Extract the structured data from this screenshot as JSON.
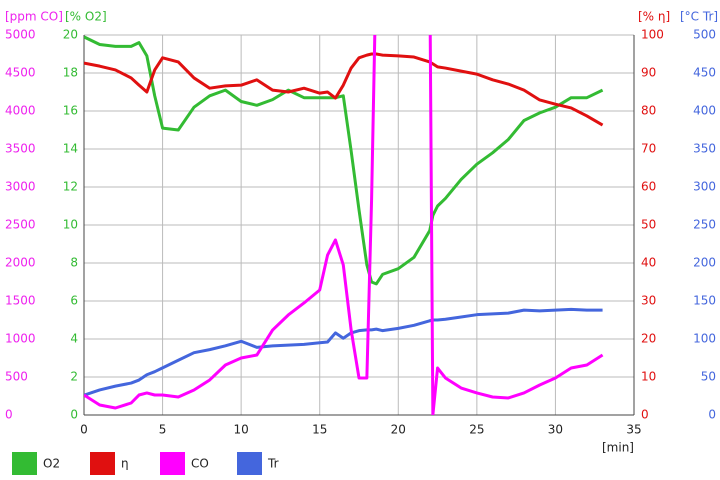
{
  "chart_data": {
    "type": "line",
    "x_label": "[min]",
    "xlim": [
      0,
      35
    ],
    "xticks": [
      0,
      5,
      10,
      15,
      20,
      25,
      30,
      35
    ],
    "grid": true,
    "legend": "bottom",
    "y_axes": [
      {
        "label": "[ppm CO]",
        "color": "#ee22ee",
        "side": "left",
        "lim": [
          0,
          5000
        ],
        "ticks": [
          0,
          500,
          1000,
          1500,
          2000,
          2500,
          3000,
          3500,
          4000,
          4500,
          5000
        ]
      },
      {
        "label": "[% O2]",
        "color": "#33bb33",
        "side": "left",
        "lim": [
          0,
          20
        ],
        "ticks": [
          0,
          2,
          4,
          6,
          8,
          10,
          12,
          14,
          16,
          18,
          20
        ]
      },
      {
        "label": "[% η]",
        "color": "#e01010",
        "side": "right",
        "lim": [
          0,
          100
        ],
        "ticks": [
          0,
          10,
          20,
          30,
          40,
          50,
          60,
          70,
          80,
          90,
          100
        ]
      },
      {
        "label": "[°C Tr]",
        "color": "#4466dd",
        "side": "right",
        "lim": [
          0,
          500
        ],
        "ticks": [
          0,
          50,
          100,
          150,
          200,
          250,
          300,
          350,
          400,
          450,
          500
        ]
      }
    ],
    "x": [
      0,
      1,
      2,
      3,
      3.5,
      4,
      4.5,
      5,
      6,
      7,
      8,
      9,
      10,
      11,
      12,
      13,
      14,
      15,
      15.5,
      16,
      16.5,
      17,
      17.5,
      18,
      18.3,
      18.6,
      19,
      20,
      21,
      22,
      22.2,
      22.5,
      23,
      24,
      25,
      26,
      27,
      28,
      29,
      30,
      31,
      32,
      33
    ],
    "series": [
      {
        "name": "O2",
        "color": "#33bb33",
        "axis": 1,
        "values": [
          19.9,
          19.5,
          19.4,
          19.4,
          19.6,
          18.9,
          16.8,
          15.1,
          15,
          16.2,
          16.8,
          17.1,
          16.5,
          16.3,
          16.6,
          17.1,
          16.7,
          16.7,
          16.7,
          16.7,
          16.8,
          13.9,
          10.8,
          7.9,
          7.0,
          6.9,
          7.4,
          7.7,
          8.3,
          9.7,
          10.5,
          11,
          11.4,
          12.4,
          13.2,
          13.8,
          14.5,
          15.5,
          15.9,
          16.2,
          16.7,
          16.7,
          17.1
        ]
      },
      {
        "name": "η",
        "color": "#e01010",
        "axis": 2,
        "values": [
          92.6,
          91.8,
          90.8,
          88.7,
          86.8,
          85,
          90.8,
          94,
          92.9,
          88.7,
          86,
          86.6,
          86.8,
          88.2,
          85.5,
          85,
          86,
          84.7,
          85,
          83.4,
          86.8,
          91.3,
          94,
          94.7,
          95,
          95,
          94.7,
          94.5,
          94.2,
          92.9,
          92.4,
          91.6,
          91.3,
          90.5,
          89.7,
          88.2,
          87.1,
          85.5,
          82.9,
          81.8,
          80.8,
          78.7,
          76.3
        ]
      },
      {
        "name": "CO",
        "color": "#ff00ff",
        "axis": 0,
        "values": [
          263,
          132,
          92,
          158,
          263,
          290,
          263,
          263,
          237,
          329,
          461,
          658,
          750,
          789,
          1118,
          1316,
          1474,
          1645,
          2105,
          2303,
          1974,
          1118,
          487,
          487,
          2829,
          6000,
          6000,
          6000,
          6000,
          6000,
          0,
          618,
          487,
          355,
          290,
          237,
          224,
          290,
          395,
          487,
          618,
          658,
          789
        ]
      },
      {
        "name": "Tr",
        "color": "#4466dd",
        "axis": 3,
        "values": [
          26,
          33,
          38,
          42,
          46,
          53,
          57,
          62,
          72,
          82,
          86,
          91,
          97,
          89,
          91,
          92,
          93,
          95,
          96,
          108,
          101,
          108,
          111,
          112,
          112,
          113,
          111,
          114,
          118,
          124,
          125,
          125,
          126,
          129,
          132,
          133,
          134,
          138,
          137,
          138,
          139,
          138,
          138
        ]
      }
    ]
  }
}
